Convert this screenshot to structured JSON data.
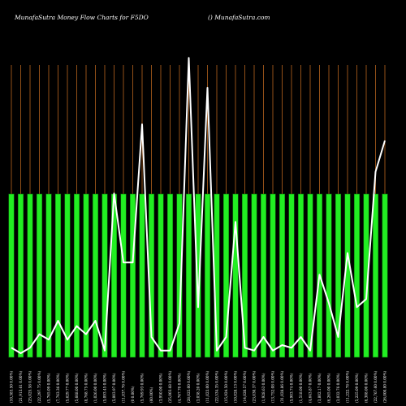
{
  "chart_data": {
    "type": "bar",
    "title": "MunafaSutra  Money Flow  Charts for F5DO",
    "watermark": "() MunafaSutra.com",
    "colors": {
      "background": "#000000",
      "bar": "#22ee22",
      "bar_edge": "#0a7a0a",
      "grid": "#b8641e",
      "line": "#ffffff",
      "text": "#ffffff"
    },
    "categories": [
      "(10,383.50 0.00%)",
      "(21,913.61 0.00%)",
      "(25,025.58 0.00%)",
      "(22,297.75 0.00%)",
      "(5,765.09 0.00%)",
      "(7,763.36 0.00%)",
      "(5,629.77 0.00%)",
      "(5,668.00 0.00%)",
      "(8,768.75 0.00%)",
      "(1,026.00 0.00%)",
      "(5,093.45 0.00%)",
      "(5,003.97 0.00%)",
      "(11,037.76 0.00%)",
      "(0 0.00%)",
      "(5,769.93 0.00%)",
      "(60.00%)",
      "(3,950.00 0.00%)",
      "(25,003.68 0.00%)",
      "(4,767.70 0.00%)",
      "(28,025.00 0.00%)",
      "(3,038.20 0.00%)",
      "(11,023.00 0.00%)",
      "(22,534.35 0.00%)",
      "(15,924.50 0.00%)",
      "(10,028.13 0.00%)",
      "(14,020.57 0.00%)",
      "(23,030.37 0.00%)",
      "(1,928.63 0.00%)",
      "(13,752.08 0.00%)",
      "(31,028.86 0.00%)",
      "(5,903.74 0.00%)",
      "(1,518.00 0.00%)",
      "(4,643.87 0.00%)",
      "(3,802.17 0.00%)",
      "(6,265.00 0.00%)",
      "(3,032.76 0.00%)",
      "(11,222.78 0.00%)",
      "(5,225.09 0.00%)",
      "(6,308.00 0.00%)",
      "(22,767.60 0.00%)",
      "(26,000.80 0.00%)"
    ],
    "bar_values": [
      1,
      1,
      1,
      1,
      1,
      1,
      1,
      1,
      1,
      1,
      1,
      1,
      1,
      1,
      1,
      1,
      1,
      1,
      1,
      1,
      1,
      1,
      1,
      1,
      1,
      1,
      1,
      1,
      1,
      1,
      1,
      1,
      1,
      1,
      1,
      1,
      1,
      1,
      1,
      1,
      1
    ],
    "line_values": [
      -0.28,
      -0.32,
      -0.28,
      -0.18,
      -0.22,
      -0.08,
      -0.22,
      -0.12,
      -0.18,
      -0.08,
      -0.3,
      0.86,
      0.35,
      0.35,
      1.37,
      -0.2,
      -0.3,
      -0.3,
      -0.1,
      1.86,
      0.02,
      1.64,
      -0.3,
      -0.2,
      0.65,
      -0.28,
      -0.3,
      -0.2,
      -0.3,
      -0.26,
      -0.28,
      -0.2,
      -0.3,
      0.26,
      0.05,
      -0.2,
      0.42,
      0.02,
      0.08,
      1.02,
      1.25
    ],
    "ylim": [
      -0.35,
      1.88
    ],
    "grid": true
  }
}
